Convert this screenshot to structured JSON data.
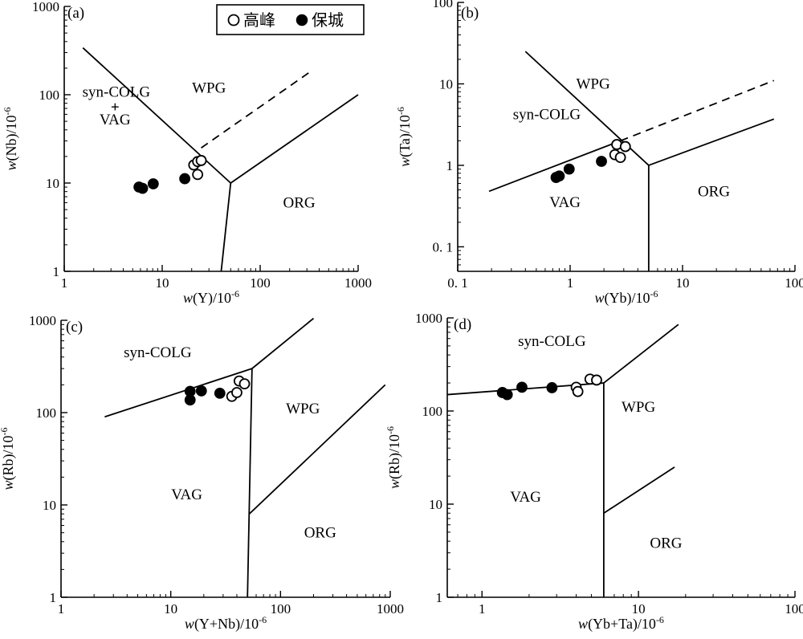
{
  "legend": {
    "items": [
      {
        "label": "高峰",
        "marker": "open-circle"
      },
      {
        "label": "保城",
        "marker": "filled-circle"
      }
    ]
  },
  "chart_data": [
    {
      "id": "a",
      "type": "scatter",
      "scale": "log-log",
      "panel_label": "(a)",
      "xlabel_sym": "w",
      "xlabel_var": "(Y)/10",
      "xlabel_exp": "-6",
      "ylabel_sym": "w",
      "ylabel_var": "(Nb)/10",
      "ylabel_exp": "-6",
      "xlim": [
        1,
        1000
      ],
      "ylim": [
        1,
        1000
      ],
      "x_ticks": [
        1,
        10,
        100,
        1000
      ],
      "x_tick_labels": [
        "1",
        "10",
        "100",
        "1000"
      ],
      "y_ticks": [
        1,
        10,
        100,
        1000
      ],
      "y_tick_labels": [
        "1",
        "10",
        "100",
        "1000"
      ],
      "boundaries": [
        {
          "points": [
            [
              1.55,
              340
            ],
            [
              50,
              10
            ]
          ],
          "style": "solid"
        },
        {
          "points": [
            [
              50,
              10
            ],
            [
              40,
              1
            ]
          ],
          "style": "solid"
        },
        {
          "points": [
            [
              50,
              10
            ],
            [
              1000,
              100
            ]
          ],
          "style": "solid"
        },
        {
          "points": [
            [
              25,
              25
            ],
            [
              320,
              180
            ]
          ],
          "style": "dashed"
        }
      ],
      "regions": [
        {
          "label": "syn-COLG",
          "x": 3.4,
          "y": 108
        },
        {
          "label": "+",
          "x": 3.3,
          "y": 72
        },
        {
          "label": "VAG",
          "x": 3.3,
          "y": 52
        },
        {
          "label": "WPG",
          "x": 30,
          "y": 120
        },
        {
          "label": "ORG",
          "x": 250,
          "y": 6
        }
      ],
      "series": [
        {
          "name": "高峰",
          "marker": "open",
          "points": [
            [
              21,
              16
            ],
            [
              23,
              17.5
            ],
            [
              25,
              18
            ],
            [
              23,
              12.5
            ]
          ]
        },
        {
          "name": "保城",
          "marker": "filled",
          "points": [
            [
              5.8,
              9
            ],
            [
              6.3,
              8.7
            ],
            [
              8.1,
              9.8
            ],
            [
              17,
              11.2
            ]
          ]
        }
      ]
    },
    {
      "id": "b",
      "type": "scatter",
      "scale": "log-log",
      "panel_label": "(b)",
      "xlabel_sym": "w",
      "xlabel_var": "(Yb)/10",
      "xlabel_exp": "-6",
      "ylabel_sym": "w",
      "ylabel_var": "(Ta)/10",
      "ylabel_exp": "-6",
      "xlim": [
        0.1,
        100
      ],
      "ylim": [
        0.05,
        100
      ],
      "x_ticks": [
        0.1,
        1,
        10,
        100
      ],
      "x_tick_labels": [
        "0. 1",
        "1",
        "10",
        "100"
      ],
      "y_ticks": [
        0.1,
        1,
        10,
        100
      ],
      "y_tick_labels": [
        "0. 1",
        "1",
        "10",
        "100"
      ],
      "boundaries": [
        {
          "points": [
            [
              0.19,
              0.48
            ],
            [
              2.8,
              2
            ]
          ],
          "style": "solid"
        },
        {
          "points": [
            [
              0.4,
              25
            ],
            [
              5,
              1
            ]
          ],
          "style": "solid"
        },
        {
          "points": [
            [
              5,
              1
            ],
            [
              5,
              0.05
            ]
          ],
          "style": "solid"
        },
        {
          "points": [
            [
              5,
              1
            ],
            [
              65,
              3.7
            ]
          ],
          "style": "solid"
        },
        {
          "points": [
            [
              2.8,
              2
            ],
            [
              65,
              11
            ]
          ],
          "style": "dashed"
        }
      ],
      "regions": [
        {
          "label": "WPG",
          "x": 1.6,
          "y": 10
        },
        {
          "label": "syn-COLG",
          "x": 0.62,
          "y": 4.2
        },
        {
          "label": "VAG",
          "x": 0.9,
          "y": 0.35
        },
        {
          "label": "ORG",
          "x": 19,
          "y": 0.48
        }
      ],
      "series": [
        {
          "name": "高峰",
          "marker": "open",
          "points": [
            [
              2.6,
              1.8
            ],
            [
              3.1,
              1.7
            ],
            [
              2.5,
              1.35
            ],
            [
              2.8,
              1.25
            ]
          ]
        },
        {
          "name": "保城",
          "marker": "filled",
          "points": [
            [
              0.75,
              0.71
            ],
            [
              0.8,
              0.74
            ],
            [
              0.98,
              0.9
            ],
            [
              1.9,
              1.12
            ]
          ]
        }
      ]
    },
    {
      "id": "c",
      "type": "scatter",
      "scale": "log-log",
      "panel_label": "(c)",
      "xlabel_sym": "w",
      "xlabel_var": "(Y+Nb)/10",
      "xlabel_exp": "-6",
      "ylabel_sym": "w",
      "ylabel_var": "(Rb)/10",
      "ylabel_exp": "-6",
      "xlim": [
        1,
        1000
      ],
      "ylim": [
        1,
        1000
      ],
      "x_ticks": [
        1,
        10,
        100,
        1000
      ],
      "x_tick_labels": [
        "1",
        "10",
        "100",
        "1000"
      ],
      "y_ticks": [
        1,
        10,
        100,
        1000
      ],
      "y_tick_labels": [
        "1",
        "10",
        "100",
        "1000"
      ],
      "boundaries": [
        {
          "points": [
            [
              2.5,
              90
            ],
            [
              55,
              300
            ]
          ],
          "style": "solid"
        },
        {
          "points": [
            [
              55,
              300
            ],
            [
              50,
              1
            ]
          ],
          "style": "solid"
        },
        {
          "points": [
            [
              55,
              300
            ],
            [
              200,
              1050
            ]
          ],
          "style": "solid"
        },
        {
          "points": [
            [
              52,
              8
            ],
            [
              900,
              200
            ]
          ],
          "style": "solid"
        }
      ],
      "regions": [
        {
          "label": "syn-COLG",
          "x": 7.6,
          "y": 450
        },
        {
          "label": "WPG",
          "x": 160,
          "y": 110
        },
        {
          "label": "VAG",
          "x": 14,
          "y": 13
        },
        {
          "label": "ORG",
          "x": 230,
          "y": 5
        }
      ],
      "series": [
        {
          "name": "高峰",
          "marker": "open",
          "points": [
            [
              42,
              220
            ],
            [
              47,
              205
            ],
            [
              36,
              150
            ],
            [
              40,
              165
            ]
          ]
        },
        {
          "name": "保城",
          "marker": "filled",
          "points": [
            [
              15,
              170
            ],
            [
              19,
              172
            ],
            [
              15,
              137
            ],
            [
              28,
              162
            ]
          ]
        }
      ]
    },
    {
      "id": "d",
      "type": "scatter",
      "scale": "log-log",
      "panel_label": "(d)",
      "xlabel_sym": "w",
      "xlabel_var": "(Yb+Ta)/10",
      "xlabel_exp": "-6",
      "ylabel_sym": "w",
      "ylabel_var": "(Rb)/10",
      "ylabel_exp": "-6",
      "xlim": [
        0.6,
        100
      ],
      "ylim": [
        1,
        1000
      ],
      "x_ticks": [
        1,
        10,
        100
      ],
      "x_tick_labels": [
        "1",
        "10",
        "100"
      ],
      "y_ticks": [
        1,
        10,
        100,
        1000
      ],
      "y_tick_labels": [
        "1",
        "10",
        "100",
        "1000"
      ],
      "boundaries": [
        {
          "points": [
            [
              0.6,
              150
            ],
            [
              6,
              200
            ]
          ],
          "style": "solid"
        },
        {
          "points": [
            [
              6,
              200
            ],
            [
              6,
              1
            ]
          ],
          "style": "solid"
        },
        {
          "points": [
            [
              6,
              200
            ],
            [
              18,
              850
            ]
          ],
          "style": "solid"
        },
        {
          "points": [
            [
              6,
              8
            ],
            [
              17,
              25
            ]
          ],
          "style": "solid"
        }
      ],
      "regions": [
        {
          "label": "syn-COLG",
          "x": 2.8,
          "y": 560
        },
        {
          "label": "WPG",
          "x": 10,
          "y": 110
        },
        {
          "label": "VAG",
          "x": 1.9,
          "y": 12
        },
        {
          "label": "ORG",
          "x": 15,
          "y": 3.8
        }
      ],
      "series": [
        {
          "name": "高峰",
          "marker": "open",
          "points": [
            [
              4.9,
              220
            ],
            [
              5.4,
              215
            ],
            [
              4,
              180
            ],
            [
              4.1,
              162
            ]
          ]
        },
        {
          "name": "保城",
          "marker": "filled",
          "points": [
            [
              1.35,
              158
            ],
            [
              1.45,
              150
            ],
            [
              1.8,
              180
            ],
            [
              2.8,
              178
            ]
          ]
        }
      ]
    }
  ]
}
